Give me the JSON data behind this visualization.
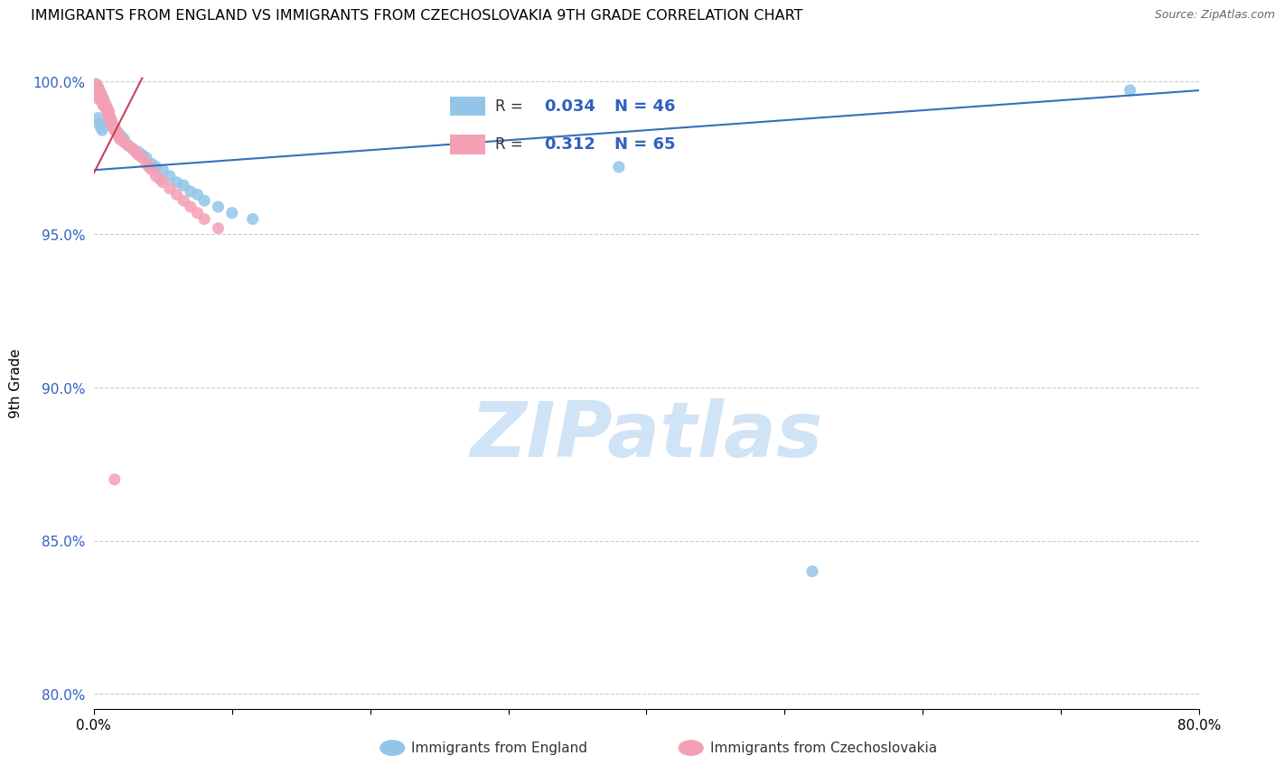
{
  "title": "IMMIGRANTS FROM ENGLAND VS IMMIGRANTS FROM CZECHOSLOVAKIA 9TH GRADE CORRELATION CHART",
  "source": "Source: ZipAtlas.com",
  "ylabel": "9th Grade",
  "xlim": [
    0.0,
    0.8
  ],
  "ylim": [
    0.795,
    1.008
  ],
  "yticks": [
    0.8,
    0.85,
    0.9,
    0.95,
    1.0
  ],
  "ytick_labels": [
    "80.0%",
    "85.0%",
    "90.0%",
    "95.0%",
    "100.0%"
  ],
  "xticks": [
    0.0,
    0.1,
    0.2,
    0.3,
    0.4,
    0.5,
    0.6,
    0.7,
    0.8
  ],
  "xtick_labels": [
    "0.0%",
    "",
    "",
    "",
    "",
    "",
    "",
    "",
    "80.0%"
  ],
  "england_color": "#92C5E8",
  "czech_color": "#F4A0B5",
  "england_R": 0.034,
  "england_N": 46,
  "czech_R": 0.312,
  "czech_N": 65,
  "england_line_color": "#3570B8",
  "czech_line_color": "#C84060",
  "watermark": "ZIPatlas",
  "watermark_color": "#D0E4F5",
  "background_color": "#FFFFFF",
  "england_x": [
    0.001,
    0.002,
    0.002,
    0.003,
    0.003,
    0.004,
    0.004,
    0.005,
    0.006,
    0.007,
    0.007,
    0.008,
    0.009,
    0.01,
    0.011,
    0.012,
    0.013,
    0.014,
    0.016,
    0.018,
    0.02,
    0.022,
    0.025,
    0.028,
    0.032,
    0.035,
    0.038,
    0.042,
    0.045,
    0.05,
    0.055,
    0.06,
    0.065,
    0.07,
    0.075,
    0.08,
    0.09,
    0.1,
    0.115,
    0.38,
    0.52,
    0.75,
    0.003,
    0.004,
    0.005,
    0.006
  ],
  "england_y": [
    0.999,
    0.998,
    0.997,
    0.998,
    0.996,
    0.997,
    0.995,
    0.996,
    0.995,
    0.994,
    0.993,
    0.992,
    0.991,
    0.99,
    0.988,
    0.987,
    0.986,
    0.985,
    0.984,
    0.983,
    0.982,
    0.981,
    0.979,
    0.978,
    0.977,
    0.976,
    0.975,
    0.973,
    0.972,
    0.971,
    0.969,
    0.967,
    0.966,
    0.964,
    0.963,
    0.961,
    0.959,
    0.957,
    0.955,
    0.972,
    0.84,
    0.997,
    0.988,
    0.986,
    0.985,
    0.984
  ],
  "czech_x": [
    0.001,
    0.001,
    0.001,
    0.002,
    0.002,
    0.002,
    0.002,
    0.003,
    0.003,
    0.003,
    0.003,
    0.004,
    0.004,
    0.004,
    0.004,
    0.005,
    0.005,
    0.005,
    0.006,
    0.006,
    0.006,
    0.007,
    0.007,
    0.007,
    0.008,
    0.008,
    0.009,
    0.009,
    0.01,
    0.01,
    0.01,
    0.011,
    0.011,
    0.012,
    0.012,
    0.013,
    0.013,
    0.014,
    0.015,
    0.015,
    0.016,
    0.017,
    0.018,
    0.019,
    0.02,
    0.022,
    0.025,
    0.028,
    0.03,
    0.032,
    0.035,
    0.038,
    0.04,
    0.042,
    0.045,
    0.048,
    0.05,
    0.055,
    0.06,
    0.065,
    0.07,
    0.075,
    0.08,
    0.09,
    0.015
  ],
  "czech_y": [
    0.999,
    0.998,
    0.997,
    0.999,
    0.998,
    0.997,
    0.996,
    0.998,
    0.997,
    0.996,
    0.995,
    0.997,
    0.996,
    0.995,
    0.994,
    0.996,
    0.995,
    0.994,
    0.995,
    0.994,
    0.993,
    0.994,
    0.993,
    0.992,
    0.993,
    0.992,
    0.992,
    0.991,
    0.991,
    0.99,
    0.989,
    0.99,
    0.989,
    0.988,
    0.987,
    0.987,
    0.986,
    0.985,
    0.985,
    0.984,
    0.984,
    0.983,
    0.982,
    0.981,
    0.981,
    0.98,
    0.979,
    0.978,
    0.977,
    0.976,
    0.975,
    0.973,
    0.972,
    0.971,
    0.969,
    0.968,
    0.967,
    0.965,
    0.963,
    0.961,
    0.959,
    0.957,
    0.955,
    0.952,
    0.87
  ],
  "england_line_x": [
    0.0,
    0.8
  ],
  "england_line_y": [
    0.97,
    0.997
  ],
  "czech_line_x": [
    0.0,
    0.04
  ],
  "czech_line_y": [
    0.97,
    1.001
  ]
}
